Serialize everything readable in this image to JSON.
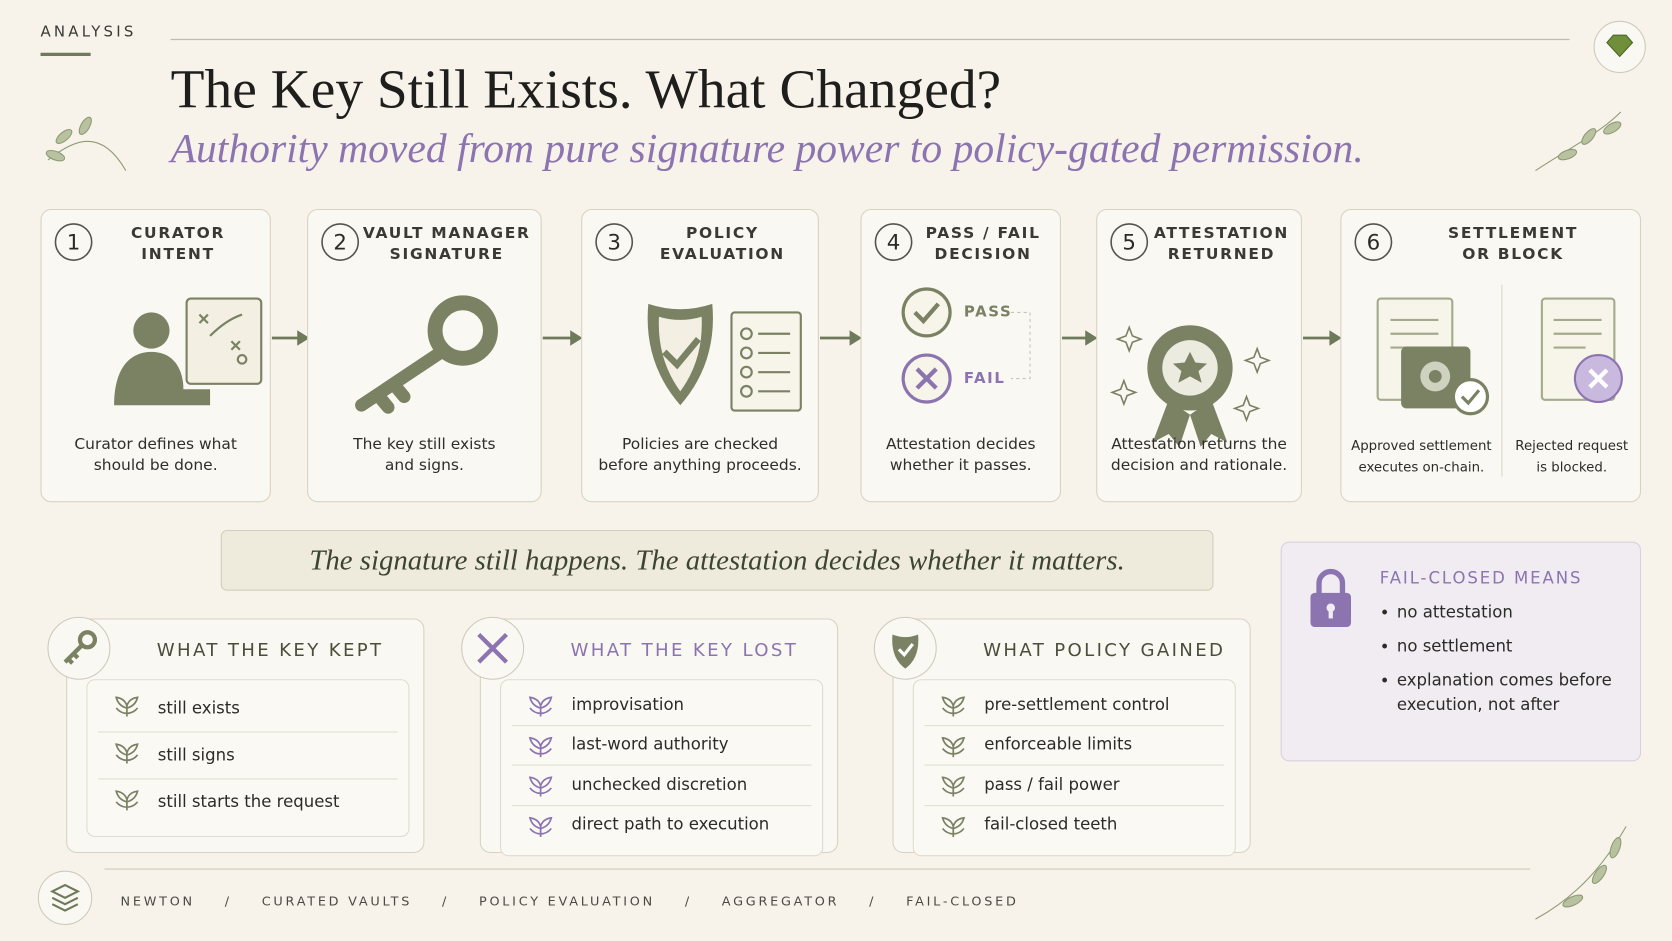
{
  "header": {
    "section": "ANALYSIS",
    "title": "The Key Still Exists. What Changed?",
    "subtitle": "Authority moved from pure signature power to policy-gated permission."
  },
  "steps": [
    {
      "number": 1,
      "title": [
        "CURATOR",
        "INTENT"
      ],
      "caption": [
        "Curator defines what",
        "should be done."
      ]
    },
    {
      "number": 2,
      "title": [
        "VAULT MANAGER",
        "SIGNATURE"
      ],
      "caption": [
        "The key still exists",
        "and signs."
      ]
    },
    {
      "number": 3,
      "title": [
        "POLICY",
        "EVALUATION"
      ],
      "caption": [
        "Policies are checked",
        "before anything proceeds."
      ]
    },
    {
      "number": 4,
      "title": [
        "PASS / FAIL",
        "DECISION"
      ],
      "labels": [
        "PASS",
        "FAIL"
      ],
      "caption": [
        "Attestation decides",
        "whether it passes."
      ]
    },
    {
      "number": 5,
      "title": [
        "ATTESTATION",
        "RETURNED"
      ],
      "caption": [
        "Attestation returns the",
        "decision and rationale."
      ]
    },
    {
      "number": 6,
      "title": [
        "SETTLEMENT",
        "OR BLOCK"
      ],
      "caption": [
        "Approved settlement",
        "executes on-chain."
      ],
      "blocked_caption": [
        "Rejected request",
        "is blocked."
      ]
    }
  ],
  "quote": "The signature still happens. The attestation decides whether it matters.",
  "fail_closed": {
    "title": "FAIL-CLOSED MEANS",
    "items": [
      "no attestation",
      "no settlement",
      "explanation comes before execution, not after"
    ]
  },
  "panels": [
    {
      "title": "WHAT THE KEY KEPT",
      "items": [
        "still exists",
        "still signs",
        "still starts the request"
      ]
    },
    {
      "title": "WHAT THE KEY LOST",
      "items": [
        "improvisation",
        "last-word authority",
        "unchecked discretion",
        "direct path to execution"
      ]
    },
    {
      "title": "WHAT POLICY GAINED",
      "items": [
        "pre-settlement control",
        "enforceable limits",
        "pass / fail power",
        "fail-closed teeth"
      ]
    }
  ],
  "footer": {
    "items": [
      "NEWTON",
      "CURATED VAULTS",
      "POLICY EVALUATION",
      "AGGREGATOR",
      "FAIL-CLOSED"
    ],
    "separator": "/"
  }
}
